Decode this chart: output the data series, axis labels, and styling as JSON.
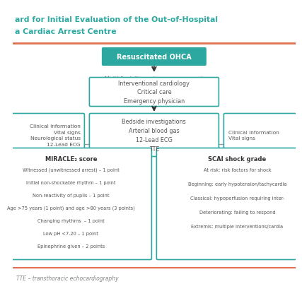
{
  "title_line1": "ard for Initial Evaluation of the Out-of-Hospital",
  "title_line2": "a Cardiac Arrest Centre",
  "title_color": "#2ca8a0",
  "bg_color": "#ffffff",
  "border_color": "#e07050",
  "teal_fill": "#2ca8a0",
  "teal_text": "#ffffff",
  "outline_border": "#2ca8a0",
  "arrow_color": "#333333",
  "text_color": "#555555",
  "dark_text": "#333333",
  "footnote_color": "#888888",
  "sep_color": "#999999",
  "box1_text": "Resuscitated OHCA",
  "multidisc_label": "Multidisciplinary team assessment",
  "box2_text": "Interventional cardiology\nCritical care\nEmergency physician",
  "box3_text": "Bedside investigations\nArterial blood gas\n12-Lead ECG\nTTE",
  "left_mid_text": "Clinical information\nVital signs\nNeurological status\n12-Lead ECG",
  "right_mid_text": "Clinical information\nVital signs",
  "miracle_title": "MIRACLE₂ score",
  "miracle_lines": [
    "Witnessed (unwitnessed arrest) – 1 point",
    "Initial non-shockable rhythm – 1 point",
    "Non-reactivity of pupils – 1 point",
    "Age >75 years (1 point) and age >80 years (3 points)",
    "Changing rhythms  – 1 point",
    "Low pH <7.20 – 1 point",
    "Epinephrine given – 2 points"
  ],
  "scai_title": "SCAI shock grade",
  "scai_lines": [
    "At risk: risk factors for shock",
    "Beginning: early hypotension/tachycardia",
    "Classical: hypoperfusion requiring inter-",
    "Deteriorating: failing to respond",
    "Extremis: multiple interventions/cardia"
  ],
  "footnote": "TTE – transthoracic echocardiography"
}
